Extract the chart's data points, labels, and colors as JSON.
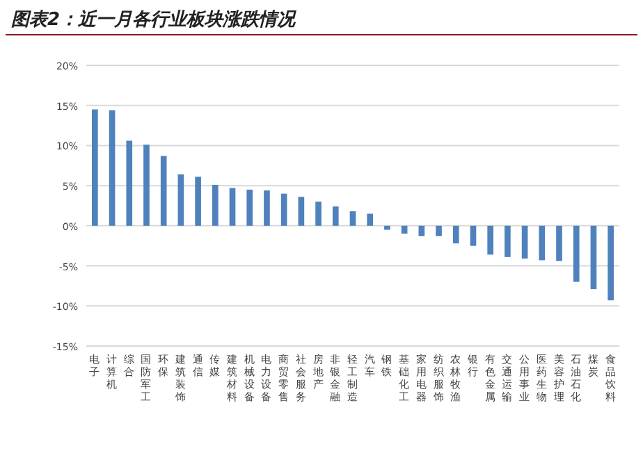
{
  "chart_data": {
    "type": "bar",
    "title": "图表2：近一月各行业板块涨跌情况",
    "categories": [
      "电子",
      "计算机",
      "综合",
      "国防军工",
      "环保",
      "建筑装饰",
      "通信",
      "传媒",
      "建筑材料",
      "机械设备",
      "电力设备",
      "商贸零售",
      "社会服务",
      "房地产",
      "非银金融",
      "轻工制造",
      "汽车",
      "钢铁",
      "基础化工",
      "家用电器",
      "纺织服饰",
      "农林牧渔",
      "银行",
      "有色金属",
      "交通运输",
      "公用事业",
      "医药生物",
      "美容护理",
      "石油石化",
      "煤炭",
      "食品饮料"
    ],
    "values": [
      14.5,
      14.4,
      10.6,
      10.1,
      8.7,
      6.4,
      6.1,
      5.1,
      4.7,
      4.5,
      4.4,
      4.0,
      3.6,
      3.0,
      2.4,
      1.8,
      1.5,
      -0.5,
      -1.0,
      -1.3,
      -1.3,
      -2.2,
      -2.5,
      -3.6,
      -3.9,
      -4.1,
      -4.3,
      -4.4,
      -7.0,
      -7.9,
      -9.3
    ],
    "color": "#4f81bd",
    "ylim": [
      -15,
      20
    ],
    "yticks": [
      {
        "value": -15,
        "label": "-15%"
      },
      {
        "value": -10,
        "label": "-10%"
      },
      {
        "value": -5,
        "label": "-5%"
      },
      {
        "value": 0,
        "label": "0%"
      },
      {
        "value": 5,
        "label": "5%"
      },
      {
        "value": 10,
        "label": "10%"
      },
      {
        "value": 15,
        "label": "15%"
      },
      {
        "value": 20,
        "label": "20%"
      }
    ],
    "grid": "y"
  }
}
